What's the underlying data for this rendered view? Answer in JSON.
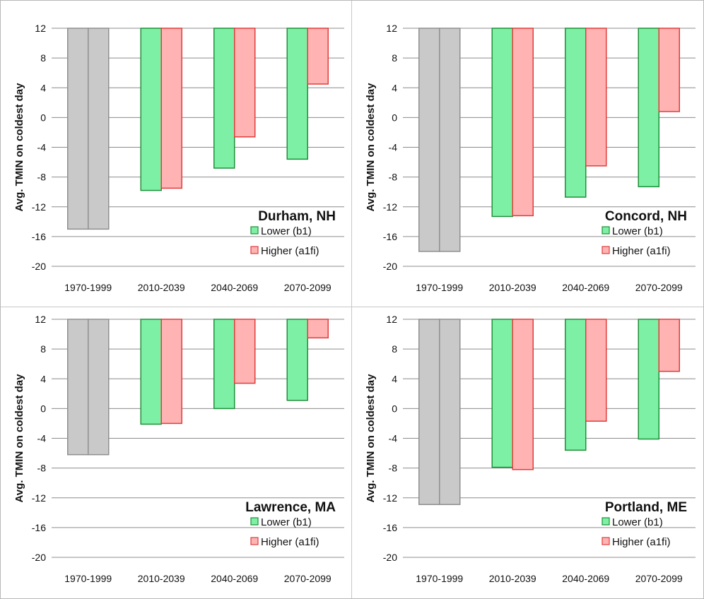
{
  "colors": {
    "historical_fill": "#c9c9c9",
    "historical_stroke": "#8f8f8f",
    "lower_fill": "#7ef0a6",
    "lower_stroke": "#1f8f3a",
    "higher_fill": "#ffb3b3",
    "higher_stroke": "#e03c3c",
    "grid": "#8c8c8c"
  },
  "chart_data": [
    {
      "type": "bar",
      "title": "Durham, NH",
      "ylabel": "Avg. TMIN on coldest day",
      "ylim": [
        -20,
        12
      ],
      "yticks": [
        "12",
        "8",
        "4",
        "0",
        "-4",
        "-8",
        "-12",
        "-16",
        "-20"
      ],
      "categories": [
        "1970-1999",
        "2010-2039",
        "2040-2069",
        "2070-2099"
      ],
      "historical": -15.0,
      "series": [
        {
          "name": "Lower (b1)",
          "values": [
            null,
            -9.8,
            -6.8,
            -5.6
          ]
        },
        {
          "name": "Higher (a1fi)",
          "values": [
            null,
            -9.5,
            -2.6,
            4.5
          ]
        }
      ],
      "legend": "bottom-right"
    },
    {
      "type": "bar",
      "title": "Concord, NH",
      "ylabel": "Avg. TMIN on coldest day",
      "ylim": [
        -20,
        12
      ],
      "yticks": [
        "12",
        "8",
        "4",
        "0",
        "-4",
        "-8",
        "-12",
        "-16",
        "-20"
      ],
      "categories": [
        "1970-1999",
        "2010-2039",
        "2040-2069",
        "2070-2099"
      ],
      "historical": -18.0,
      "series": [
        {
          "name": "Lower (b1)",
          "values": [
            null,
            -13.3,
            -10.7,
            -9.3
          ]
        },
        {
          "name": "Higher (a1fi)",
          "values": [
            null,
            -13.2,
            -6.5,
            0.8
          ]
        }
      ],
      "legend": "bottom-right"
    },
    {
      "type": "bar",
      "title": "Lawrence, MA",
      "ylabel": "Avg. TMIN on coldest day",
      "ylim": [
        -20,
        12
      ],
      "yticks": [
        "12",
        "8",
        "4",
        "0",
        "-4",
        "-8",
        "-12",
        "-16",
        "-20"
      ],
      "categories": [
        "1970-1999",
        "2010-2039",
        "2040-2069",
        "2070-2099"
      ],
      "historical": -6.2,
      "series": [
        {
          "name": "Lower (b1)",
          "values": [
            null,
            -2.1,
            0.0,
            1.1
          ]
        },
        {
          "name": "Higher (a1fi)",
          "values": [
            null,
            -2.0,
            3.4,
            9.5
          ]
        }
      ],
      "legend": "bottom-right"
    },
    {
      "type": "bar",
      "title": "Portland, ME",
      "ylabel": "Avg. TMIN on coldest day",
      "ylim": [
        -20,
        12
      ],
      "yticks": [
        "12",
        "8",
        "4",
        "0",
        "-4",
        "-8",
        "-12",
        "-16",
        "-20"
      ],
      "categories": [
        "1970-1999",
        "2010-2039",
        "2040-2069",
        "2070-2099"
      ],
      "historical": -12.9,
      "series": [
        {
          "name": "Lower (b1)",
          "values": [
            null,
            -7.9,
            -5.6,
            -4.1
          ]
        },
        {
          "name": "Higher (a1fi)",
          "values": [
            null,
            -8.2,
            -1.7,
            5.0
          ]
        }
      ],
      "legend": "bottom-right"
    }
  ]
}
